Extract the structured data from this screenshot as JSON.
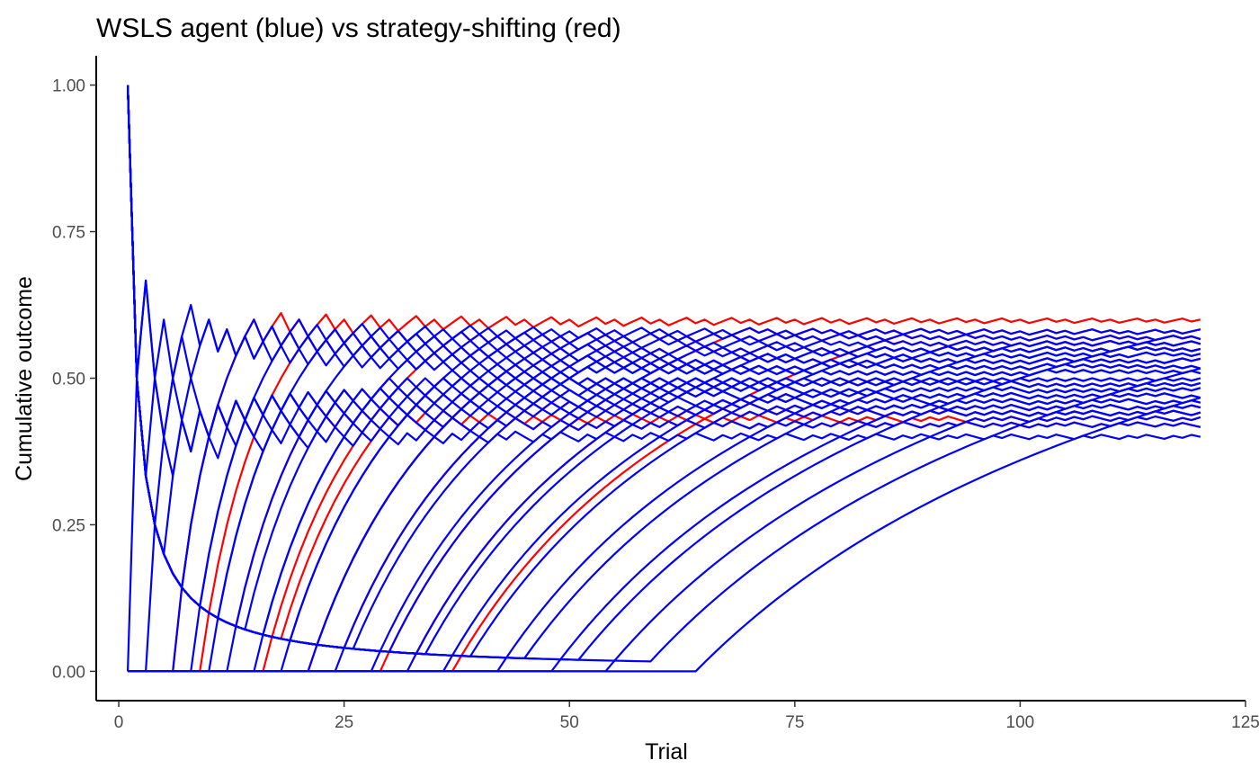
{
  "chart_data": {
    "type": "line",
    "title": "WSLS agent (blue) vs strategy-shifting (red)",
    "xlabel": "Trial",
    "ylabel": "Cumulative outcome",
    "xlim": [
      -2.5,
      125
    ],
    "ylim": [
      -0.05,
      1.05
    ],
    "x_ticks": [
      0,
      25,
      50,
      75,
      100,
      125
    ],
    "x_tick_labels": [
      "0",
      "25",
      "50",
      "75",
      "100",
      "125"
    ],
    "y_ticks": [
      0,
      0.25,
      0.5,
      0.75,
      1
    ],
    "y_tick_labels": [
      "0.00",
      "0.25",
      "0.50",
      "0.75",
      "1.00"
    ],
    "grid": false,
    "legend": "none",
    "trials": 120,
    "series_colors": {
      "strategy_shifting": "#ff0000",
      "wsls": "#0000ff"
    },
    "series": [
      {
        "group": "strategy_shifting",
        "first_win_trial": 7,
        "start_outcome": 0,
        "end_value": 0.6
      },
      {
        "group": "strategy_shifting",
        "first_win_trial": 10,
        "start_outcome": 0,
        "end_value": 0.57
      },
      {
        "group": "strategy_shifting",
        "first_win_trial": 14,
        "start_outcome": 1,
        "end_value": 0.43
      },
      {
        "group": "strategy_shifting",
        "first_win_trial": 17,
        "start_outcome": 0,
        "end_value": 0.55
      },
      {
        "group": "strategy_shifting",
        "first_win_trial": 19,
        "start_outcome": 1,
        "end_value": 0.42
      },
      {
        "group": "strategy_shifting",
        "first_win_trial": 22,
        "start_outcome": 0,
        "end_value": 0.53
      },
      {
        "group": "strategy_shifting",
        "first_win_trial": 26,
        "start_outcome": 1,
        "end_value": 0.45
      },
      {
        "group": "strategy_shifting",
        "first_win_trial": 30,
        "start_outcome": 0,
        "end_value": 0.58
      },
      {
        "group": "strategy_shifting",
        "first_win_trial": 34,
        "start_outcome": 1,
        "end_value": 0.44
      },
      {
        "group": "strategy_shifting",
        "first_win_trial": 38,
        "start_outcome": 0,
        "end_value": 0.56
      },
      {
        "group": "wsls",
        "first_win_trial": 1,
        "start_outcome": 1,
        "end_value": 0.4
      },
      {
        "group": "wsls",
        "first_win_trial": 2,
        "start_outcome": 0,
        "end_value": 0.58
      },
      {
        "group": "wsls",
        "first_win_trial": 3,
        "start_outcome": 1,
        "end_value": 0.42
      },
      {
        "group": "wsls",
        "first_win_trial": 4,
        "start_outcome": 0,
        "end_value": 0.57
      },
      {
        "group": "wsls",
        "first_win_trial": 6,
        "start_outcome": 1,
        "end_value": 0.44
      },
      {
        "group": "wsls",
        "first_win_trial": 7,
        "start_outcome": 0,
        "end_value": 0.56
      },
      {
        "group": "wsls",
        "first_win_trial": 8,
        "start_outcome": 1,
        "end_value": 0.45
      },
      {
        "group": "wsls",
        "first_win_trial": 9,
        "start_outcome": 0,
        "end_value": 0.55
      },
      {
        "group": "wsls",
        "first_win_trial": 10,
        "start_outcome": 1,
        "end_value": 0.46
      },
      {
        "group": "wsls",
        "first_win_trial": 11,
        "start_outcome": 0,
        "end_value": 0.54
      },
      {
        "group": "wsls",
        "first_win_trial": 12,
        "start_outcome": 1,
        "end_value": 0.47
      },
      {
        "group": "wsls",
        "first_win_trial": 13,
        "start_outcome": 0,
        "end_value": 0.53
      },
      {
        "group": "wsls",
        "first_win_trial": 15,
        "start_outcome": 1,
        "end_value": 0.48
      },
      {
        "group": "wsls",
        "first_win_trial": 16,
        "start_outcome": 0,
        "end_value": 0.52
      },
      {
        "group": "wsls",
        "first_win_trial": 17,
        "start_outcome": 1,
        "end_value": 0.49
      },
      {
        "group": "wsls",
        "first_win_trial": 19,
        "start_outcome": 0,
        "end_value": 0.51
      },
      {
        "group": "wsls",
        "first_win_trial": 20,
        "start_outcome": 1,
        "end_value": 0.5
      },
      {
        "group": "wsls",
        "first_win_trial": 22,
        "start_outcome": 0,
        "end_value": 0.5
      },
      {
        "group": "wsls",
        "first_win_trial": 23,
        "start_outcome": 1,
        "end_value": 0.51
      },
      {
        "group": "wsls",
        "first_win_trial": 25,
        "start_outcome": 0,
        "end_value": 0.49
      },
      {
        "group": "wsls",
        "first_win_trial": 27,
        "start_outcome": 1,
        "end_value": 0.52
      },
      {
        "group": "wsls",
        "first_win_trial": 29,
        "start_outcome": 0,
        "end_value": 0.48
      },
      {
        "group": "wsls",
        "first_win_trial": 31,
        "start_outcome": 1,
        "end_value": 0.53
      },
      {
        "group": "wsls",
        "first_win_trial": 33,
        "start_outcome": 0,
        "end_value": 0.47
      },
      {
        "group": "wsls",
        "first_win_trial": 35,
        "start_outcome": 1,
        "end_value": 0.54
      },
      {
        "group": "wsls",
        "first_win_trial": 37,
        "start_outcome": 0,
        "end_value": 0.46
      },
      {
        "group": "wsls",
        "first_win_trial": 40,
        "start_outcome": 1,
        "end_value": 0.55
      },
      {
        "group": "wsls",
        "first_win_trial": 43,
        "start_outcome": 0,
        "end_value": 0.45
      },
      {
        "group": "wsls",
        "first_win_trial": 46,
        "start_outcome": 1,
        "end_value": 0.56
      },
      {
        "group": "wsls",
        "first_win_trial": 49,
        "start_outcome": 0,
        "end_value": 0.44
      },
      {
        "group": "wsls",
        "first_win_trial": 52,
        "start_outcome": 1,
        "end_value": 0.57
      },
      {
        "group": "wsls",
        "first_win_trial": 55,
        "start_outcome": 0,
        "end_value": 0.43
      },
      {
        "group": "wsls",
        "first_win_trial": 60,
        "start_outcome": 1,
        "end_value": 0.52
      },
      {
        "group": "wsls",
        "first_win_trial": 65,
        "start_outcome": 0,
        "end_value": 0.48
      }
    ]
  }
}
